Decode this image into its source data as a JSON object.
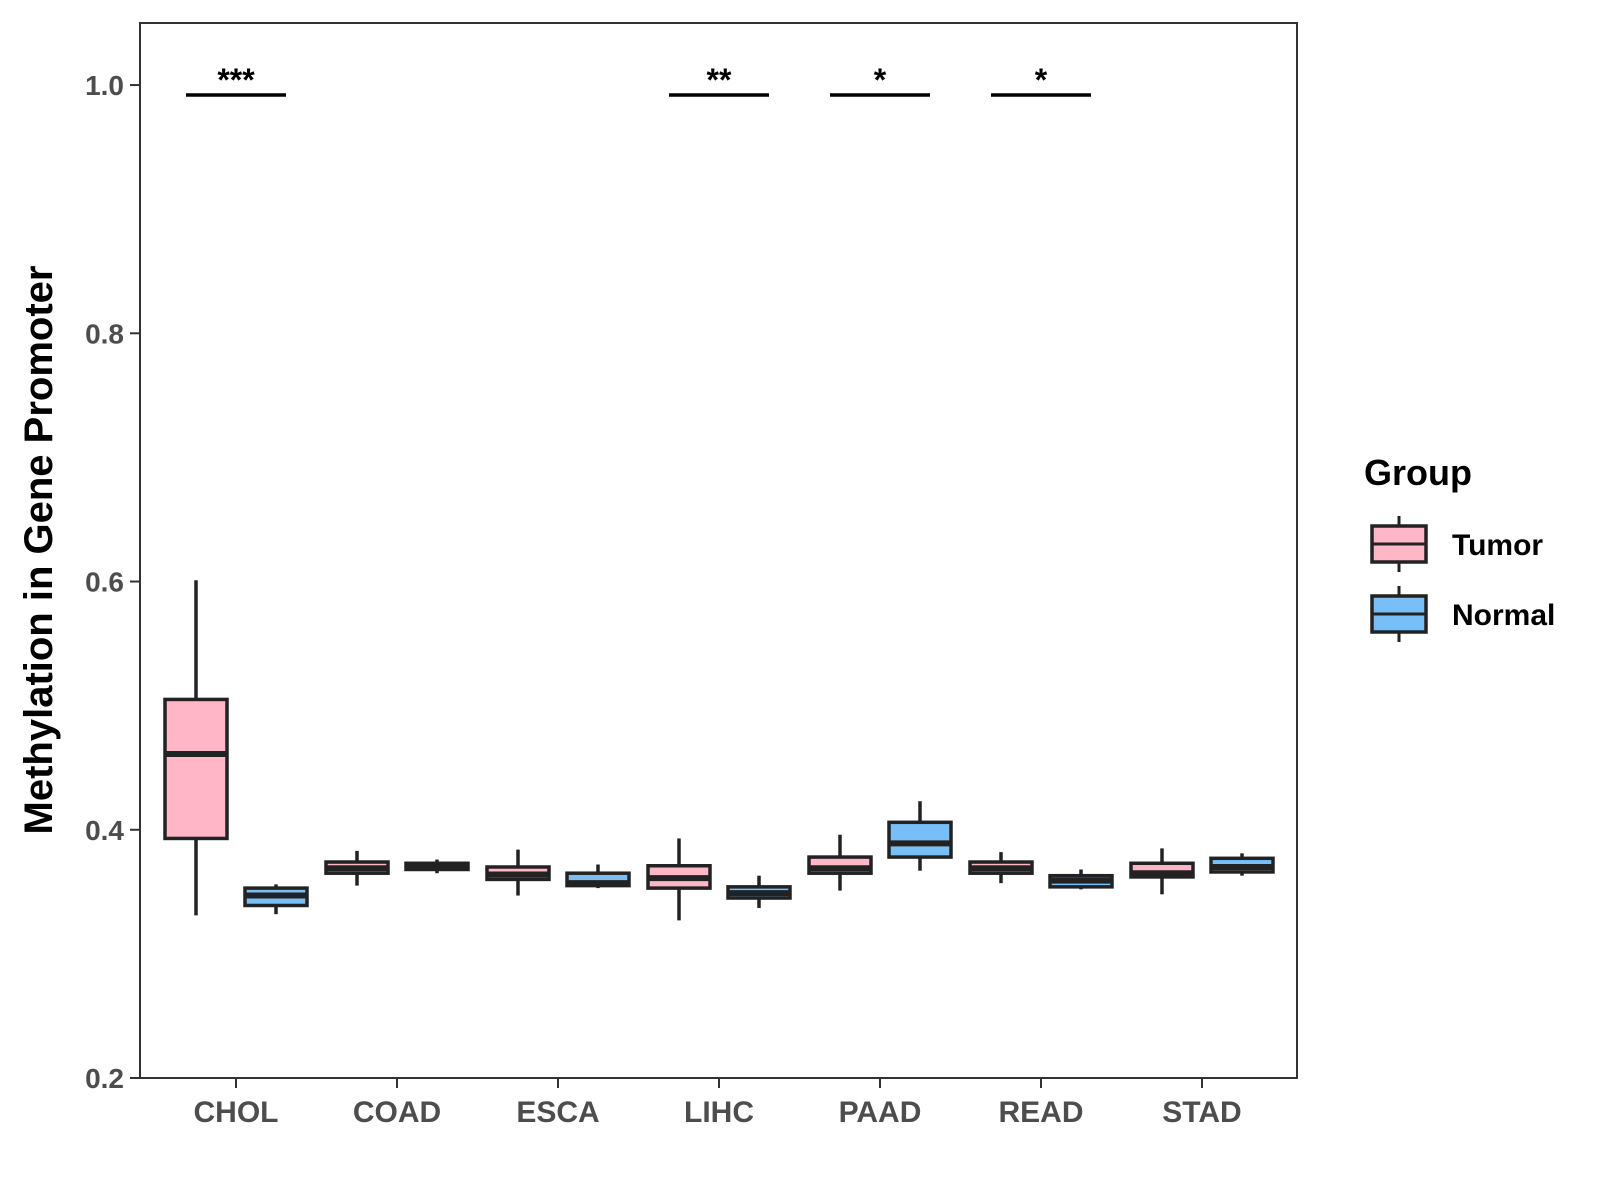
{
  "chart_data": {
    "type": "boxplot",
    "title": "",
    "xlabel": "",
    "ylabel": "Methylation in Gene Promoter",
    "ylim": [
      0.2,
      1.05
    ],
    "yticks": [
      "0.2",
      "0.4",
      "0.6",
      "0.8",
      "1.0"
    ],
    "grid": false,
    "categories": [
      "CHOL",
      "COAD",
      "ESCA",
      "LIHC",
      "PAAD",
      "READ",
      "STAD"
    ],
    "legend": {
      "title": "Group",
      "position": "right",
      "entries": [
        {
          "name": "Tumor",
          "color": "#ffb6c6"
        },
        {
          "name": "Normal",
          "color": "#79bff7"
        }
      ]
    },
    "series": [
      {
        "name": "Tumor",
        "color": "#ffb6c6",
        "boxes": [
          {
            "min": 0.331,
            "q1": 0.393,
            "median": 0.461,
            "q3": 0.505,
            "max": 0.601
          },
          {
            "min": 0.355,
            "q1": 0.365,
            "median": 0.369,
            "q3": 0.374,
            "max": 0.383
          },
          {
            "min": 0.347,
            "q1": 0.36,
            "median": 0.364,
            "q3": 0.37,
            "max": 0.384
          },
          {
            "min": 0.327,
            "q1": 0.353,
            "median": 0.361,
            "q3": 0.371,
            "max": 0.393
          },
          {
            "min": 0.351,
            "q1": 0.365,
            "median": 0.369,
            "q3": 0.378,
            "max": 0.396
          },
          {
            "min": 0.357,
            "q1": 0.365,
            "median": 0.369,
            "q3": 0.374,
            "max": 0.382
          },
          {
            "min": 0.348,
            "q1": 0.362,
            "median": 0.365,
            "q3": 0.373,
            "max": 0.385
          }
        ]
      },
      {
        "name": "Normal",
        "color": "#79bff7",
        "boxes": [
          {
            "min": 0.332,
            "q1": 0.339,
            "median": 0.347,
            "q3": 0.353,
            "max": 0.356
          },
          {
            "min": 0.365,
            "q1": 0.368,
            "median": 0.371,
            "q3": 0.373,
            "max": 0.376
          },
          {
            "min": 0.353,
            "q1": 0.355,
            "median": 0.357,
            "q3": 0.365,
            "max": 0.372
          },
          {
            "min": 0.337,
            "q1": 0.345,
            "median": 0.349,
            "q3": 0.354,
            "max": 0.363
          },
          {
            "min": 0.367,
            "q1": 0.378,
            "median": 0.389,
            "q3": 0.406,
            "max": 0.423
          },
          {
            "min": 0.352,
            "q1": 0.354,
            "median": 0.359,
            "q3": 0.363,
            "max": 0.368
          },
          {
            "min": 0.363,
            "q1": 0.366,
            "median": 0.37,
            "q3": 0.377,
            "max": 0.381
          }
        ]
      }
    ],
    "annotations": [
      {
        "category": "CHOL",
        "label": "***",
        "y": 0.992
      },
      {
        "category": "LIHC",
        "label": "**",
        "y": 0.992
      },
      {
        "category": "PAAD",
        "label": "*",
        "y": 0.992
      },
      {
        "category": "READ",
        "label": "*",
        "y": 0.992
      }
    ]
  }
}
